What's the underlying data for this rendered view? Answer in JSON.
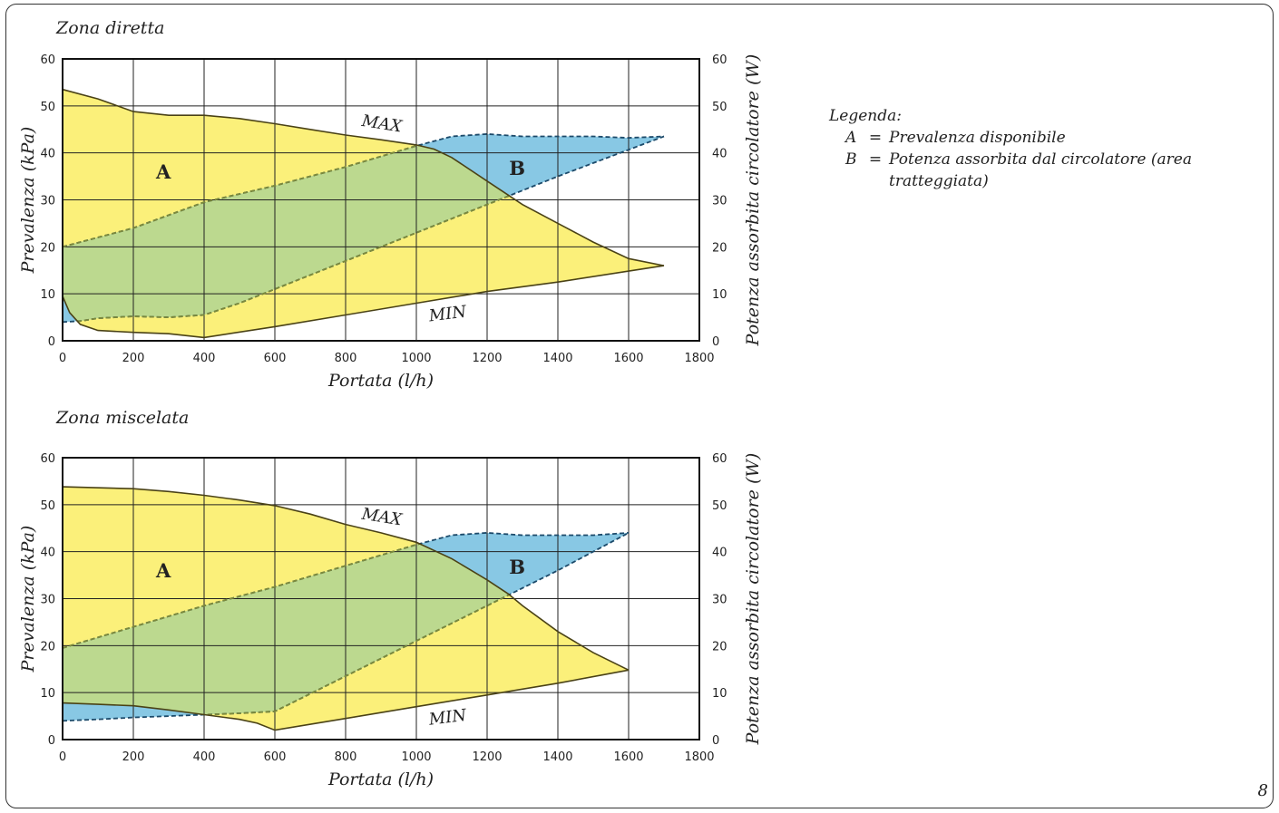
{
  "page_number": "8",
  "legend": {
    "title": "Legenda:",
    "items": [
      {
        "key": "A",
        "eq": "=",
        "text": "Prevalenza disponibile"
      },
      {
        "key": "B",
        "eq": "=",
        "text": "Potenza assorbita dal circolatore (area tratteggiata)"
      }
    ]
  },
  "colors": {
    "area_A": "#fbf07a",
    "area_B": "#88c8e4",
    "overlap": "#bcd98f",
    "curve": "#4a4216",
    "grid": "#222222"
  },
  "chart_data": [
    {
      "type": "area",
      "title": "Zona diretta",
      "xlabel": "Portata (l/h)",
      "ylabel": "Prevalenza (kPa)",
      "y2label": "Potenza assorbita circolatore (W)",
      "xlim": [
        0,
        1800
      ],
      "ylim": [
        0,
        60
      ],
      "y2lim": [
        0,
        60
      ],
      "xticks": [
        0,
        200,
        400,
        600,
        800,
        1000,
        1200,
        1400,
        1600,
        1800
      ],
      "yticks": [
        0,
        10,
        20,
        30,
        40,
        50,
        60
      ],
      "grid": true,
      "labels": {
        "A": "A",
        "B": "B",
        "max": "MAX",
        "min": "MIN"
      },
      "series": [
        {
          "name": "MAX",
          "x": [
            0,
            100,
            200,
            300,
            400,
            500,
            600,
            700,
            800,
            900,
            1000,
            1050,
            1100,
            1200,
            1300,
            1400,
            1500,
            1600,
            1700
          ],
          "y": [
            53.5,
            51.5,
            48.8,
            48,
            48,
            47.3,
            46.2,
            45,
            43.8,
            42.8,
            41.7,
            40.8,
            39,
            34,
            29,
            25,
            21,
            17.5,
            16
          ]
        },
        {
          "name": "MIN",
          "x": [
            0,
            20,
            50,
            100,
            200,
            300,
            400,
            600,
            800,
            1000,
            1200,
            1400,
            1700
          ],
          "y": [
            9.5,
            6,
            3.5,
            2.2,
            1.8,
            1.5,
            0.7,
            3,
            5.5,
            8,
            10.5,
            12.5,
            16
          ]
        },
        {
          "name": "Potenza max",
          "x": [
            0,
            200,
            400,
            600,
            800,
            1000,
            1100,
            1200,
            1300,
            1400,
            1500,
            1600,
            1700
          ],
          "y": [
            20,
            24,
            29.5,
            33,
            37,
            41.5,
            43.5,
            44,
            43.5,
            43.5,
            43.5,
            43.2,
            43.5
          ]
        },
        {
          "name": "Potenza min",
          "x": [
            0,
            50,
            100,
            200,
            300,
            400,
            500,
            600,
            800,
            1000,
            1200,
            1400,
            1700
          ],
          "y": [
            4,
            4.2,
            4.8,
            5.2,
            5,
            5.5,
            8,
            11,
            17,
            23,
            29,
            35,
            43.5
          ]
        }
      ]
    },
    {
      "type": "area",
      "title": "Zona miscelata",
      "xlabel": "Portata (l/h)",
      "ylabel": "Prevalenza (kPa)",
      "y2label": "Potenza assorbita circolatore (W)",
      "xlim": [
        0,
        1800
      ],
      "ylim": [
        0,
        60
      ],
      "y2lim": [
        0,
        60
      ],
      "xticks": [
        0,
        200,
        400,
        600,
        800,
        1000,
        1200,
        1400,
        1600,
        1800
      ],
      "yticks": [
        0,
        10,
        20,
        30,
        40,
        50,
        60
      ],
      "grid": true,
      "labels": {
        "A": "A",
        "B": "B",
        "max": "MAX",
        "min": "MIN"
      },
      "series": [
        {
          "name": "MAX",
          "x": [
            0,
            200,
            300,
            400,
            500,
            600,
            700,
            800,
            900,
            1000,
            1100,
            1200,
            1260,
            1300,
            1400,
            1500,
            1600
          ],
          "y": [
            53.8,
            53.4,
            52.8,
            52,
            51,
            49.8,
            48,
            45.8,
            44,
            42,
            38.5,
            34,
            31,
            28.5,
            23,
            18.5,
            14.8
          ]
        },
        {
          "name": "MIN",
          "x": [
            0,
            100,
            200,
            300,
            400,
            500,
            550,
            600,
            800,
            1000,
            1200,
            1400,
            1600
          ],
          "y": [
            7.8,
            7.5,
            7.2,
            6.3,
            5.3,
            4.3,
            3.5,
            2,
            4.5,
            7,
            9.5,
            12,
            14.8
          ]
        },
        {
          "name": "Potenza max",
          "x": [
            0,
            200,
            400,
            600,
            800,
            1000,
            1100,
            1200,
            1300,
            1400,
            1500,
            1600
          ],
          "y": [
            19.5,
            24,
            28.5,
            32.5,
            37,
            41.5,
            43.5,
            44,
            43.5,
            43.5,
            43.5,
            44
          ]
        },
        {
          "name": "Potenza min",
          "x": [
            0,
            100,
            200,
            300,
            400,
            500,
            600,
            800,
            1000,
            1200,
            1400,
            1600
          ],
          "y": [
            4,
            4.3,
            4.7,
            5,
            5.3,
            5.6,
            6,
            13.5,
            21,
            28.5,
            36,
            44
          ]
        }
      ]
    }
  ]
}
